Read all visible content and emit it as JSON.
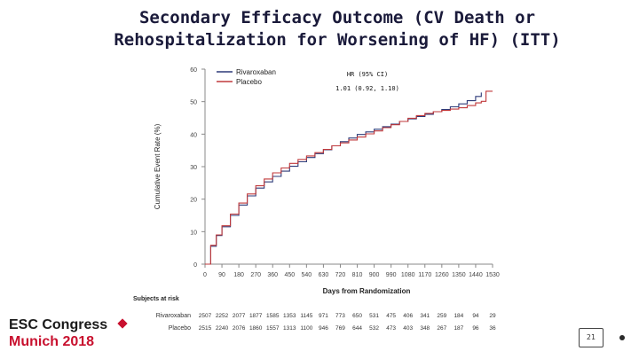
{
  "slide": {
    "title_line1": "Secondary Efficacy Outcome (CV Death or",
    "title_line2": "Rehospitalization for Worsening of HF) (ITT)",
    "brand_line1": "ESC Congress",
    "brand_line2": "Munich 2018",
    "page_number": "21"
  },
  "chart_data": {
    "type": "line",
    "title": "",
    "xlabel": "Days from Randomization",
    "ylabel": "Cumulative Event Rate (%)",
    "xlim": [
      0,
      1530
    ],
    "ylim": [
      0,
      60
    ],
    "x_ticks": [
      0,
      90,
      180,
      270,
      360,
      450,
      540,
      630,
      720,
      810,
      900,
      990,
      1080,
      1170,
      1260,
      1350,
      1440,
      1530
    ],
    "y_ticks": [
      0,
      10,
      20,
      30,
      40,
      50,
      60
    ],
    "legend_position": "top-left",
    "grid": false,
    "annotation": {
      "label": "HR (95% CI)",
      "value": "1.01 (0.92, 1.10)"
    },
    "series": [
      {
        "name": "Rivaroxaban",
        "color": "#2d3a78",
        "points": [
          [
            0,
            0
          ],
          [
            30,
            5.5
          ],
          [
            60,
            8.8
          ],
          [
            90,
            11.5
          ],
          [
            135,
            15
          ],
          [
            180,
            18.2
          ],
          [
            225,
            21
          ],
          [
            270,
            23.4
          ],
          [
            315,
            25.3
          ],
          [
            360,
            27
          ],
          [
            405,
            28.6
          ],
          [
            450,
            30.1
          ],
          [
            495,
            31.5
          ],
          [
            540,
            32.8
          ],
          [
            585,
            34
          ],
          [
            630,
            35.2
          ],
          [
            675,
            36.4
          ],
          [
            720,
            37.7
          ],
          [
            765,
            38.8
          ],
          [
            810,
            39.9
          ],
          [
            855,
            40.7
          ],
          [
            900,
            41.5
          ],
          [
            945,
            42.3
          ],
          [
            990,
            43.1
          ],
          [
            1035,
            43.9
          ],
          [
            1080,
            44.7
          ],
          [
            1125,
            45.4
          ],
          [
            1170,
            46.1
          ],
          [
            1215,
            46.9
          ],
          [
            1260,
            47.6
          ],
          [
            1305,
            48.4
          ],
          [
            1350,
            49.3
          ],
          [
            1395,
            50.3
          ],
          [
            1440,
            51.6
          ],
          [
            1470,
            52.8
          ]
        ]
      },
      {
        "name": "Placebo",
        "color": "#c0393b",
        "points": [
          [
            0,
            0
          ],
          [
            30,
            5.8
          ],
          [
            60,
            9
          ],
          [
            90,
            11.8
          ],
          [
            135,
            15.4
          ],
          [
            180,
            18.8
          ],
          [
            225,
            21.6
          ],
          [
            270,
            24.1
          ],
          [
            315,
            26.2
          ],
          [
            360,
            28.1
          ],
          [
            405,
            29.6
          ],
          [
            450,
            31
          ],
          [
            495,
            32.2
          ],
          [
            540,
            33.3
          ],
          [
            585,
            34.3
          ],
          [
            630,
            35.3
          ],
          [
            675,
            36.4
          ],
          [
            720,
            37.3
          ],
          [
            765,
            38.2
          ],
          [
            810,
            39.1
          ],
          [
            855,
            40.1
          ],
          [
            900,
            41
          ],
          [
            945,
            42
          ],
          [
            990,
            42.9
          ],
          [
            1035,
            43.9
          ],
          [
            1080,
            44.9
          ],
          [
            1125,
            45.7
          ],
          [
            1170,
            46.4
          ],
          [
            1215,
            46.9
          ],
          [
            1260,
            47.3
          ],
          [
            1305,
            47.7
          ],
          [
            1350,
            48.1
          ],
          [
            1395,
            48.8
          ],
          [
            1440,
            49.6
          ],
          [
            1470,
            50.1
          ],
          [
            1495,
            53.2
          ],
          [
            1530,
            53.2
          ]
        ]
      }
    ],
    "at_risk": {
      "heading": "Subjects at risk",
      "rows": [
        {
          "label": "Rivaroxaban",
          "values": [
            "2507",
            "2252",
            "2077",
            "1877",
            "1585",
            "1353",
            "1145",
            "971",
            "773",
            "650",
            "531",
            "475",
            "406",
            "341",
            "259",
            "184",
            "94",
            "29"
          ]
        },
        {
          "label": "Placebo",
          "values": [
            "2515",
            "2240",
            "2076",
            "1860",
            "1557",
            "1313",
            "1100",
            "946",
            "769",
            "644",
            "532",
            "473",
            "403",
            "348",
            "267",
            "187",
            "96",
            "36"
          ]
        }
      ]
    }
  }
}
